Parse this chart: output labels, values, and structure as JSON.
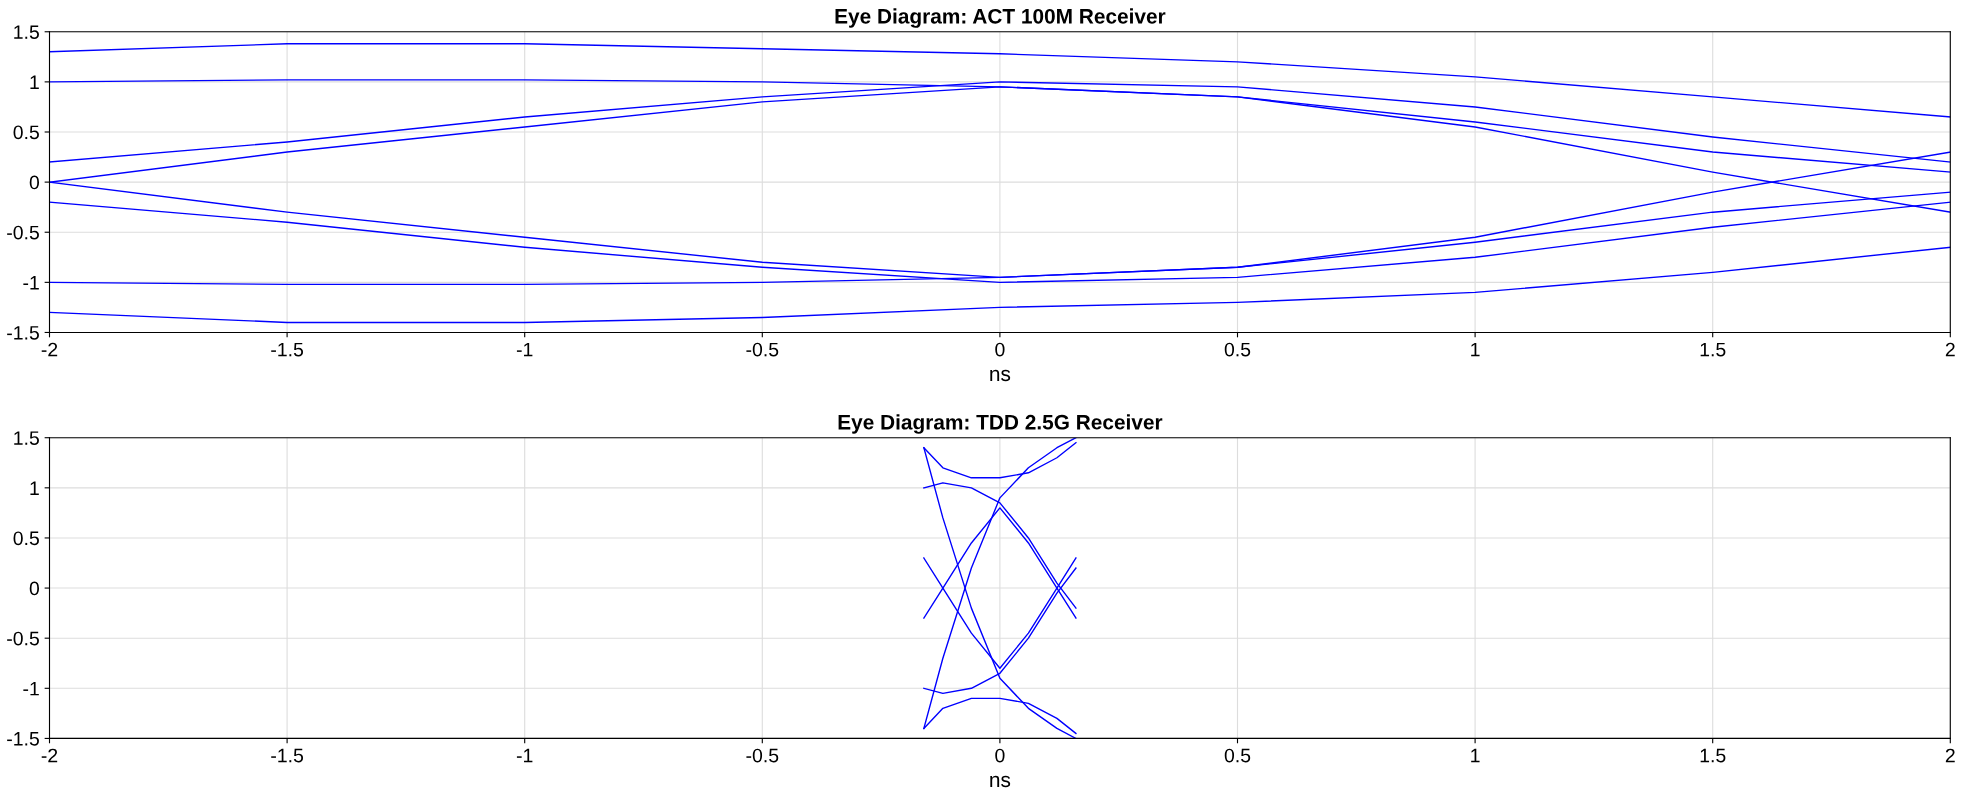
{
  "chart_data": [
    {
      "type": "line",
      "title": "Eye Diagram: ACT 100M Receiver",
      "xlabel": "ns",
      "xlim": [
        -2,
        2
      ],
      "ylim": [
        -1.5,
        1.5
      ],
      "xticks": [
        -2,
        -1.5,
        -1,
        -0.5,
        0,
        0.5,
        1,
        1.5,
        2
      ],
      "yticks": [
        -1.5,
        -1,
        -0.5,
        0,
        0.5,
        1,
        1.5
      ],
      "grid": true,
      "legend": false,
      "series": [
        {
          "color": "#0000ff",
          "x": [
            -2,
            -1.5,
            -1,
            -0.5,
            0,
            0.5,
            1,
            1.5,
            2
          ],
          "values": [
            1.3,
            1.38,
            1.38,
            1.33,
            1.28,
            1.2,
            1.05,
            0.85,
            0.65
          ]
        },
        {
          "color": "#0000ff",
          "x": [
            -2,
            -1.5,
            -1,
            -0.5,
            0,
            0.5,
            1,
            1.5,
            2
          ],
          "values": [
            1.0,
            1.02,
            1.02,
            1.0,
            0.95,
            0.85,
            0.6,
            0.3,
            0.1
          ]
        },
        {
          "color": "#0000ff",
          "x": [
            -2,
            -1.5,
            -1,
            -0.5,
            0,
            0.5,
            1,
            1.5,
            2
          ],
          "values": [
            0.0,
            0.3,
            0.55,
            0.8,
            0.95,
            0.85,
            0.55,
            0.1,
            -0.3
          ]
        },
        {
          "color": "#0000ff",
          "x": [
            -2,
            -1.5,
            -1,
            -0.5,
            0,
            0.5,
            1,
            1.5,
            2
          ],
          "values": [
            0.2,
            0.4,
            0.65,
            0.85,
            1.0,
            0.95,
            0.75,
            0.45,
            0.2
          ]
        },
        {
          "color": "#0000ff",
          "x": [
            -2,
            -1.5,
            -1,
            -0.5,
            0,
            0.5,
            1,
            1.5,
            2
          ],
          "values": [
            -1.3,
            -1.4,
            -1.4,
            -1.35,
            -1.25,
            -1.2,
            -1.1,
            -0.9,
            -0.65
          ]
        },
        {
          "color": "#0000ff",
          "x": [
            -2,
            -1.5,
            -1,
            -0.5,
            0,
            0.5,
            1,
            1.5,
            2
          ],
          "values": [
            -1.0,
            -1.02,
            -1.02,
            -1.0,
            -0.95,
            -0.85,
            -0.6,
            -0.3,
            -0.1
          ]
        },
        {
          "color": "#0000ff",
          "x": [
            -2,
            -1.5,
            -1,
            -0.5,
            0,
            0.5,
            1,
            1.5,
            2
          ],
          "values": [
            0.0,
            -0.3,
            -0.55,
            -0.8,
            -0.95,
            -0.85,
            -0.55,
            -0.1,
            0.3
          ]
        },
        {
          "color": "#0000ff",
          "x": [
            -2,
            -1.5,
            -1,
            -0.5,
            0,
            0.5,
            1,
            1.5,
            2
          ],
          "values": [
            -0.2,
            -0.4,
            -0.65,
            -0.85,
            -1.0,
            -0.95,
            -0.75,
            -0.45,
            -0.2
          ]
        }
      ]
    },
    {
      "type": "line",
      "title": "Eye Diagram: TDD 2.5G Receiver",
      "xlabel": "ns",
      "xlim": [
        -2,
        2
      ],
      "ylim": [
        -1.5,
        1.5
      ],
      "xticks": [
        -2,
        -1.5,
        -1,
        -0.5,
        0,
        0.5,
        1,
        1.5,
        2
      ],
      "yticks": [
        -1.5,
        -1,
        -0.5,
        0,
        0.5,
        1,
        1.5
      ],
      "grid": true,
      "legend": false,
      "series": [
        {
          "color": "#0000ff",
          "x": [
            -0.16,
            -0.12,
            -0.06,
            0,
            0.06,
            0.12,
            0.16
          ],
          "values": [
            -0.3,
            0,
            0.45,
            0.8,
            0.45,
            0,
            -0.3
          ]
        },
        {
          "color": "#0000ff",
          "x": [
            -0.16,
            -0.12,
            -0.06,
            0,
            0.06,
            0.12,
            0.16
          ],
          "values": [
            0.3,
            0,
            -0.45,
            -0.8,
            -0.45,
            0,
            0.3
          ]
        },
        {
          "color": "#0000ff",
          "x": [
            -0.16,
            -0.12,
            -0.06,
            0,
            0.06,
            0.12,
            0.16
          ],
          "values": [
            1.4,
            1.2,
            1.1,
            1.1,
            1.15,
            1.3,
            1.45
          ]
        },
        {
          "color": "#0000ff",
          "x": [
            -0.16,
            -0.12,
            -0.06,
            0,
            0.06,
            0.12,
            0.16
          ],
          "values": [
            -1.4,
            -1.2,
            -1.1,
            -1.1,
            -1.15,
            -1.3,
            -1.45
          ]
        },
        {
          "color": "#0000ff",
          "x": [
            -0.16,
            -0.12,
            -0.06,
            0,
            0.06,
            0.12,
            0.16
          ],
          "values": [
            -1.4,
            -0.7,
            0.2,
            0.9,
            1.2,
            1.4,
            1.5
          ]
        },
        {
          "color": "#0000ff",
          "x": [
            -0.16,
            -0.12,
            -0.06,
            0,
            0.06,
            0.12,
            0.16
          ],
          "values": [
            1.4,
            0.7,
            -0.2,
            -0.9,
            -1.2,
            -1.4,
            -1.5
          ]
        },
        {
          "color": "#0000ff",
          "x": [
            -0.16,
            -0.12,
            -0.06,
            0,
            0.06,
            0.12,
            0.16
          ],
          "values": [
            1.0,
            1.05,
            1.0,
            0.85,
            0.5,
            0.05,
            -0.2
          ]
        },
        {
          "color": "#0000ff",
          "x": [
            -0.16,
            -0.12,
            -0.06,
            0,
            0.06,
            0.12,
            0.16
          ],
          "values": [
            -1.0,
            -1.05,
            -1.0,
            -0.85,
            -0.5,
            -0.05,
            0.2
          ]
        }
      ]
    }
  ]
}
